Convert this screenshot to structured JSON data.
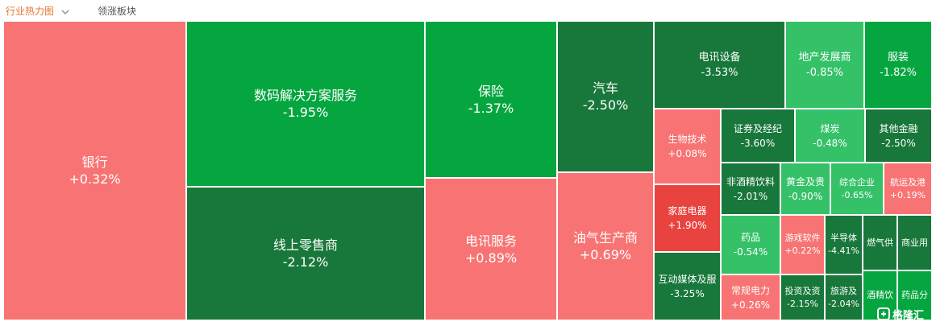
{
  "tabs": {
    "active": "行业热力图",
    "secondary": "领涨板块"
  },
  "colors": {
    "rise": "#f87373",
    "rise_strong": "#e8433f",
    "fall": "#05a640",
    "fall_dark": "#18773a",
    "fall_light": "#34c168"
  },
  "tiles": [
    {
      "name": "银行",
      "pct": "+0.32%",
      "dir": "rise"
    },
    {
      "name": "数码解决方案服务",
      "pct": "-1.95%",
      "dir": "fall"
    },
    {
      "name": "线上零售商",
      "pct": "-2.12%",
      "dir": "fall"
    },
    {
      "name": "保险",
      "pct": "-1.37%",
      "dir": "fall"
    },
    {
      "name": "电讯服务",
      "pct": "+0.89%",
      "dir": "rise"
    },
    {
      "name": "汽车",
      "pct": "-2.50%",
      "dir": "fall"
    },
    {
      "name": "油气生产商",
      "pct": "+0.69%",
      "dir": "rise"
    },
    {
      "name": "电讯设备",
      "pct": "-3.53%",
      "dir": "fall"
    },
    {
      "name": "地产发展商",
      "pct": "-0.85%",
      "dir": "fall"
    },
    {
      "name": "服装",
      "pct": "-1.82%",
      "dir": "fall"
    },
    {
      "name": "生物技术",
      "pct": "+0.08%",
      "dir": "rise"
    },
    {
      "name": "证券及经纪",
      "pct": "-3.60%",
      "dir": "fall"
    },
    {
      "name": "煤炭",
      "pct": "-0.48%",
      "dir": "fall"
    },
    {
      "name": "其他金融",
      "pct": "-2.50%",
      "dir": "fall"
    },
    {
      "name": "非酒精饮料",
      "pct": "-2.01%",
      "dir": "fall"
    },
    {
      "name": "黄金及贵",
      "pct": "-0.90%",
      "dir": "fall"
    },
    {
      "name": "综合企业",
      "pct": "-0.65%",
      "dir": "fall"
    },
    {
      "name": "航运及港",
      "pct": "+0.19%",
      "dir": "rise"
    },
    {
      "name": "家庭电器",
      "pct": "+1.90%",
      "dir": "rise"
    },
    {
      "name": "药品",
      "pct": "-0.54%",
      "dir": "fall"
    },
    {
      "name": "游戏软件",
      "pct": "+0.22%",
      "dir": "rise"
    },
    {
      "name": "半导体",
      "pct": "-4.41%",
      "dir": "fall"
    },
    {
      "name": "燃气供",
      "pct": "",
      "dir": "fall"
    },
    {
      "name": "商业用",
      "pct": "",
      "dir": "fall"
    },
    {
      "name": "互动媒体及服",
      "pct": "-3.25%",
      "dir": "fall"
    },
    {
      "name": "常规电力",
      "pct": "+0.26%",
      "dir": "rise"
    },
    {
      "name": "投资及资",
      "pct": "-2.15%",
      "dir": "fall"
    },
    {
      "name": "旅游及",
      "pct": "-2.04%",
      "dir": "fall"
    },
    {
      "name": "酒精饮",
      "pct": "",
      "dir": "fall"
    },
    {
      "name": "药品分",
      "pct": "",
      "dir": "fall"
    }
  ],
  "watermark": "格隆汇"
}
